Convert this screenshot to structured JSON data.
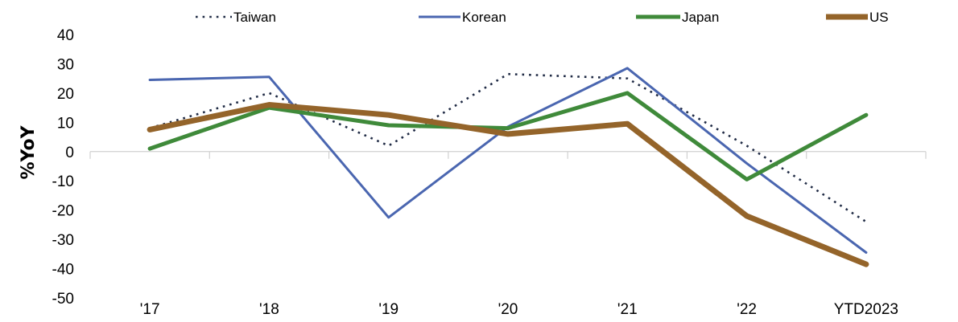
{
  "chart_data": {
    "type": "line",
    "title": "",
    "xlabel": "",
    "ylabel": "%YoY",
    "ylim": [
      -50,
      40
    ],
    "yticks": [
      40,
      30,
      20,
      10,
      0,
      -10,
      -20,
      -30,
      -40,
      -50
    ],
    "yticklabels": [
      "40",
      "30",
      "20",
      "10",
      "0",
      "-10",
      "-20",
      "-30",
      "-40",
      "-50"
    ],
    "categories": [
      "'17",
      "'18",
      "'19",
      "'20",
      "'21",
      "'22",
      "YTD2023"
    ],
    "grid": false,
    "legend": "top",
    "series": [
      {
        "name": "Taiwan",
        "color": "#1f2a44",
        "style": "dotted",
        "values": [
          8,
          20,
          2,
          26.5,
          25,
          2,
          -24
        ]
      },
      {
        "name": "Korean",
        "color": "#4a66b0",
        "style": "solid",
        "values": [
          24.5,
          25.5,
          -22.5,
          8.5,
          28.5,
          -4,
          -34.5
        ]
      },
      {
        "name": "Japan",
        "color": "#3f8a3a",
        "style": "solid",
        "values": [
          1,
          15,
          9,
          8,
          20,
          -9.5,
          12.5
        ]
      },
      {
        "name": "US",
        "color": "#94642a",
        "style": "solid",
        "values": [
          7.5,
          16,
          12.5,
          6,
          9.5,
          -22,
          -38.5
        ]
      }
    ]
  }
}
